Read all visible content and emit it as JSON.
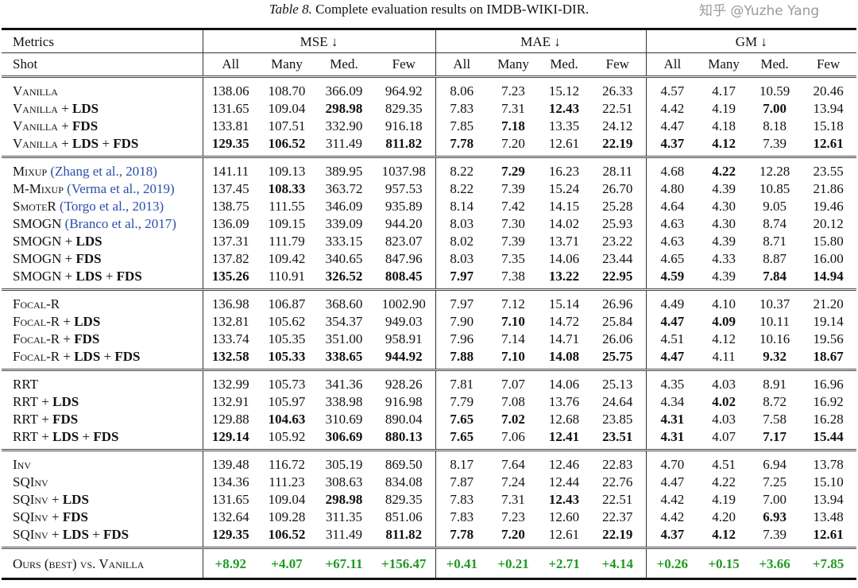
{
  "caption": {
    "label": "Table 8.",
    "text": "Complete evaluation results on IMDB-WIKI-DIR."
  },
  "header": {
    "metrics_label": "Metrics",
    "shot_label": "Shot",
    "metric_groups": [
      "MSE ↓",
      "MAE ↓",
      "GM ↓"
    ],
    "shots": [
      "All",
      "Many",
      "Med.",
      "Few"
    ]
  },
  "groups": [
    [
      {
        "name": "Vanilla",
        "cite": "",
        "mods": [],
        "values": [
          "138.06",
          "108.70",
          "366.09",
          "964.92",
          "8.06",
          "7.23",
          "15.12",
          "26.33",
          "4.57",
          "4.17",
          "10.59",
          "20.46"
        ],
        "bold": []
      },
      {
        "name": "Vanilla",
        "cite": "",
        "mods": [
          "LDS"
        ],
        "values": [
          "131.65",
          "109.04",
          "298.98",
          "829.35",
          "7.83",
          "7.31",
          "12.43",
          "22.51",
          "4.42",
          "4.19",
          "7.00",
          "13.94"
        ],
        "bold": [
          2,
          6,
          10
        ]
      },
      {
        "name": "Vanilla",
        "cite": "",
        "mods": [
          "FDS"
        ],
        "values": [
          "133.81",
          "107.51",
          "332.90",
          "916.18",
          "7.85",
          "7.18",
          "13.35",
          "24.12",
          "4.47",
          "4.18",
          "8.18",
          "15.18"
        ],
        "bold": [
          5
        ]
      },
      {
        "name": "Vanilla",
        "cite": "",
        "mods": [
          "LDS",
          "FDS"
        ],
        "values": [
          "129.35",
          "106.52",
          "311.49",
          "811.82",
          "7.78",
          "7.20",
          "12.61",
          "22.19",
          "4.37",
          "4.12",
          "7.39",
          "12.61"
        ],
        "bold": [
          0,
          1,
          3,
          4,
          7,
          8,
          9,
          11
        ]
      }
    ],
    [
      {
        "name": "Mixup",
        "cite": "(Zhang et al., 2018)",
        "mods": [],
        "values": [
          "141.11",
          "109.13",
          "389.95",
          "1037.98",
          "8.22",
          "7.29",
          "16.23",
          "28.11",
          "4.68",
          "4.22",
          "12.28",
          "23.55"
        ],
        "bold": [
          5,
          9
        ]
      },
      {
        "name": "M-Mixup",
        "cite": "(Verma et al., 2019)",
        "mods": [],
        "values": [
          "137.45",
          "108.33",
          "363.72",
          "957.53",
          "8.22",
          "7.39",
          "15.24",
          "26.70",
          "4.80",
          "4.39",
          "10.85",
          "21.86"
        ],
        "bold": [
          1
        ]
      },
      {
        "name": "SmoteR",
        "cite": "(Torgo et al., 2013)",
        "mods": [],
        "values": [
          "138.75",
          "111.55",
          "346.09",
          "935.89",
          "8.14",
          "7.42",
          "14.15",
          "25.28",
          "4.64",
          "4.30",
          "9.05",
          "19.46"
        ],
        "bold": []
      },
      {
        "name": "SMOGN",
        "cite": "(Branco et al., 2017)",
        "mods": [],
        "values": [
          "136.09",
          "109.15",
          "339.09",
          "944.20",
          "8.03",
          "7.30",
          "14.02",
          "25.93",
          "4.63",
          "4.30",
          "8.74",
          "20.12"
        ],
        "bold": []
      },
      {
        "name": "SMOGN",
        "cite": "",
        "mods": [
          "LDS"
        ],
        "values": [
          "137.31",
          "111.79",
          "333.15",
          "823.07",
          "8.02",
          "7.39",
          "13.71",
          "23.22",
          "4.63",
          "4.39",
          "8.71",
          "15.80"
        ],
        "bold": []
      },
      {
        "name": "SMOGN",
        "cite": "",
        "mods": [
          "FDS"
        ],
        "values": [
          "137.82",
          "109.42",
          "340.65",
          "847.96",
          "8.03",
          "7.35",
          "14.06",
          "23.44",
          "4.65",
          "4.33",
          "8.87",
          "16.00"
        ],
        "bold": []
      },
      {
        "name": "SMOGN",
        "cite": "",
        "mods": [
          "LDS",
          "FDS"
        ],
        "values": [
          "135.26",
          "110.91",
          "326.52",
          "808.45",
          "7.97",
          "7.38",
          "13.22",
          "22.95",
          "4.59",
          "4.39",
          "7.84",
          "14.94"
        ],
        "bold": [
          0,
          2,
          3,
          4,
          6,
          7,
          8,
          10,
          11
        ]
      }
    ],
    [
      {
        "name": "Focal-R",
        "cite": "",
        "mods": [],
        "values": [
          "136.98",
          "106.87",
          "368.60",
          "1002.90",
          "7.97",
          "7.12",
          "15.14",
          "26.96",
          "4.49",
          "4.10",
          "10.37",
          "21.20"
        ],
        "bold": []
      },
      {
        "name": "Focal-R",
        "cite": "",
        "mods": [
          "LDS"
        ],
        "values": [
          "132.81",
          "105.62",
          "354.37",
          "949.03",
          "7.90",
          "7.10",
          "14.72",
          "25.84",
          "4.47",
          "4.09",
          "10.11",
          "19.14"
        ],
        "bold": [
          5,
          8,
          9
        ]
      },
      {
        "name": "Focal-R",
        "cite": "",
        "mods": [
          "FDS"
        ],
        "values": [
          "133.74",
          "105.35",
          "351.00",
          "958.91",
          "7.96",
          "7.14",
          "14.71",
          "26.06",
          "4.51",
          "4.12",
          "10.16",
          "19.56"
        ],
        "bold": []
      },
      {
        "name": "Focal-R",
        "cite": "",
        "mods": [
          "LDS",
          "FDS"
        ],
        "values": [
          "132.58",
          "105.33",
          "338.65",
          "944.92",
          "7.88",
          "7.10",
          "14.08",
          "25.75",
          "4.47",
          "4.11",
          "9.32",
          "18.67"
        ],
        "bold": [
          0,
          1,
          2,
          3,
          4,
          5,
          6,
          7,
          8,
          10,
          11
        ]
      }
    ],
    [
      {
        "name": "RRT",
        "cite": "",
        "mods": [],
        "values": [
          "132.99",
          "105.73",
          "341.36",
          "928.26",
          "7.81",
          "7.07",
          "14.06",
          "25.13",
          "4.35",
          "4.03",
          "8.91",
          "16.96"
        ],
        "bold": []
      },
      {
        "name": "RRT",
        "cite": "",
        "mods": [
          "LDS"
        ],
        "values": [
          "132.91",
          "105.97",
          "338.98",
          "916.98",
          "7.79",
          "7.08",
          "13.76",
          "24.64",
          "4.34",
          "4.02",
          "8.72",
          "16.92"
        ],
        "bold": [
          9
        ]
      },
      {
        "name": "RRT",
        "cite": "",
        "mods": [
          "FDS"
        ],
        "values": [
          "129.88",
          "104.63",
          "310.69",
          "890.04",
          "7.65",
          "7.02",
          "12.68",
          "23.85",
          "4.31",
          "4.03",
          "7.58",
          "16.28"
        ],
        "bold": [
          1,
          4,
          5,
          8
        ]
      },
      {
        "name": "RRT",
        "cite": "",
        "mods": [
          "LDS",
          "FDS"
        ],
        "values": [
          "129.14",
          "105.92",
          "306.69",
          "880.13",
          "7.65",
          "7.06",
          "12.41",
          "23.51",
          "4.31",
          "4.07",
          "7.17",
          "15.44"
        ],
        "bold": [
          0,
          2,
          3,
          4,
          6,
          7,
          8,
          10,
          11
        ]
      }
    ],
    [
      {
        "name": "Inv",
        "cite": "",
        "mods": [],
        "values": [
          "139.48",
          "116.72",
          "305.19",
          "869.50",
          "8.17",
          "7.64",
          "12.46",
          "22.83",
          "4.70",
          "4.51",
          "6.94",
          "13.78"
        ],
        "bold": []
      },
      {
        "name": "SQInv",
        "cite": "",
        "mods": [],
        "values": [
          "134.36",
          "111.23",
          "308.63",
          "834.08",
          "7.87",
          "7.24",
          "12.44",
          "22.76",
          "4.47",
          "4.22",
          "7.25",
          "15.10"
        ],
        "bold": []
      },
      {
        "name": "SQInv",
        "cite": "",
        "mods": [
          "LDS"
        ],
        "values": [
          "131.65",
          "109.04",
          "298.98",
          "829.35",
          "7.83",
          "7.31",
          "12.43",
          "22.51",
          "4.42",
          "4.19",
          "7.00",
          "13.94"
        ],
        "bold": [
          2,
          6
        ]
      },
      {
        "name": "SQInv",
        "cite": "",
        "mods": [
          "FDS"
        ],
        "values": [
          "132.64",
          "109.28",
          "311.35",
          "851.06",
          "7.83",
          "7.23",
          "12.60",
          "22.37",
          "4.42",
          "4.20",
          "6.93",
          "13.48"
        ],
        "bold": [
          10
        ]
      },
      {
        "name": "SQInv",
        "cite": "",
        "mods": [
          "LDS",
          "FDS"
        ],
        "values": [
          "129.35",
          "106.52",
          "311.49",
          "811.82",
          "7.78",
          "7.20",
          "12.61",
          "22.19",
          "4.37",
          "4.12",
          "7.39",
          "12.61"
        ],
        "bold": [
          0,
          1,
          3,
          4,
          5,
          7,
          8,
          9,
          11
        ]
      }
    ]
  ],
  "summary": {
    "label": "Ours (best) vs. Vanilla",
    "values": [
      "+8.92",
      "+4.07",
      "+67.11",
      "+156.47",
      "+0.41",
      "+0.21",
      "+2.71",
      "+4.14",
      "+0.26",
      "+0.15",
      "+3.66",
      "+7.85"
    ]
  },
  "colors": {
    "gain": "#1f9a1f",
    "citation": "#2a4fa8"
  },
  "watermark": "知乎 @Yuzhe Yang"
}
